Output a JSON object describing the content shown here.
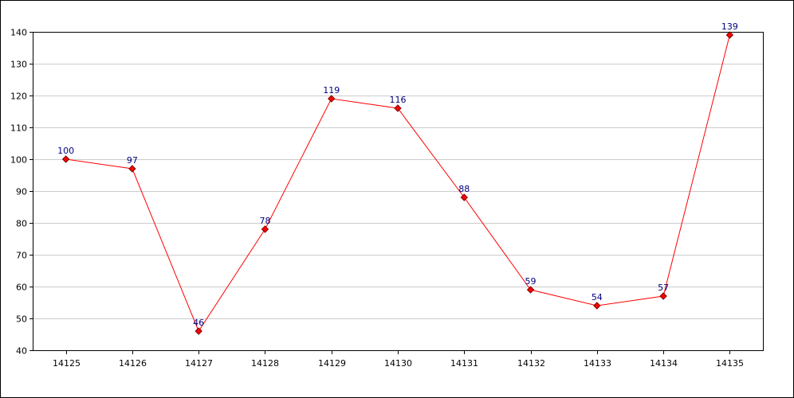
{
  "chart_data": {
    "type": "line",
    "title": "",
    "xlabel": "",
    "ylabel": "",
    "categories": [
      "14125",
      "14126",
      "14127",
      "14128",
      "14129",
      "14130",
      "14131",
      "14132",
      "14133",
      "14134",
      "14135"
    ],
    "series": [
      {
        "values": [
          100,
          97,
          46,
          78,
          119,
          116,
          88,
          59,
          54,
          57,
          139
        ]
      }
    ],
    "ylim": [
      40,
      140
    ],
    "yticks": [
      40,
      50,
      60,
      70,
      80,
      90,
      100,
      110,
      120,
      130,
      140
    ],
    "grid": true,
    "legend": "none",
    "colors": {
      "line": "#ff0000",
      "marker_fill": "#ff0000",
      "marker_stroke": "#800000",
      "data_label": "#000080",
      "grid": "#cccccc",
      "axis": "#000000"
    }
  }
}
